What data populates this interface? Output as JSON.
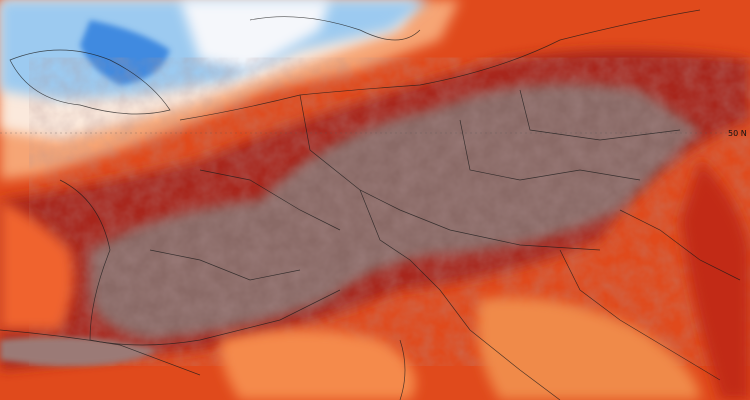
{
  "map": {
    "latitude_label": "50 N"
  }
}
